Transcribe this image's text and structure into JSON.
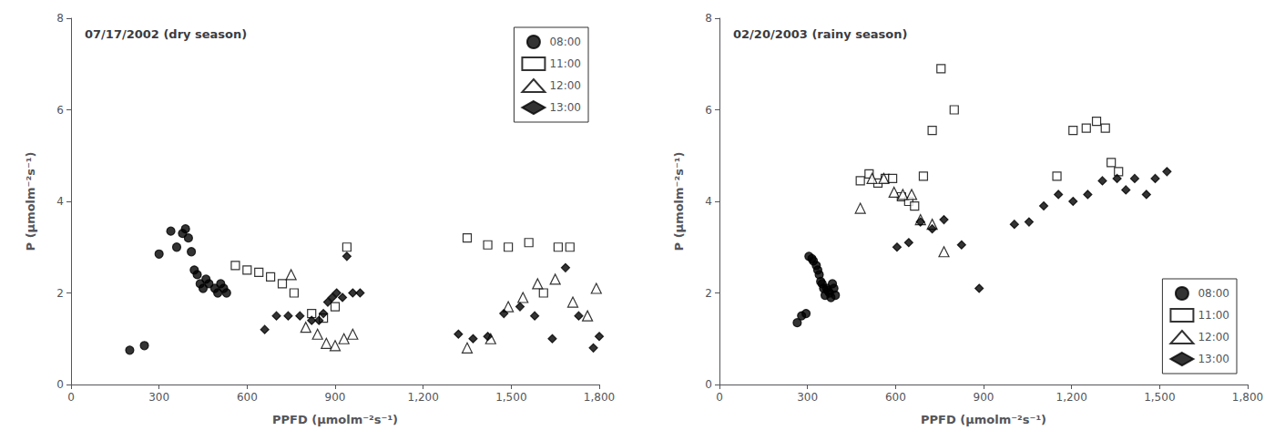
{
  "chart_data": [
    {
      "type": "scatter",
      "title": "07/17/2002 (dry season)",
      "xlabel": "PPFD (μmolm⁻²s⁻¹)",
      "ylabel": "P (μmolm⁻²s⁻¹)",
      "xlim": [
        0,
        1800
      ],
      "ylim": [
        0,
        8
      ],
      "xticks": [
        0,
        300,
        600,
        900,
        1200,
        1500,
        1800
      ],
      "yticks": [
        0,
        2,
        4,
        6,
        8
      ],
      "grid": false,
      "legend": "upper right",
      "series": [
        {
          "name": "08:00",
          "color": "black",
          "marker": "circle",
          "x": [
            200,
            250,
            300,
            340,
            360,
            380,
            390,
            400,
            410,
            420,
            430,
            440,
            450,
            460,
            470,
            490,
            500,
            510,
            520,
            530
          ],
          "values": [
            0.75,
            0.85,
            2.85,
            3.35,
            3.0,
            3.3,
            3.4,
            3.2,
            2.9,
            2.5,
            2.4,
            2.2,
            2.1,
            2.3,
            2.2,
            2.1,
            2.0,
            2.2,
            2.1,
            2.0
          ]
        },
        {
          "name": "11:00",
          "color": "black",
          "marker": "square-open",
          "x": [
            560,
            600,
            640,
            680,
            720,
            760,
            820,
            860,
            900,
            940,
            1350,
            1420,
            1490,
            1560,
            1610,
            1660,
            1700
          ],
          "values": [
            2.6,
            2.5,
            2.45,
            2.35,
            2.2,
            2.0,
            1.55,
            1.45,
            1.7,
            3.0,
            3.2,
            3.05,
            3.0,
            3.1,
            2.0,
            3.0,
            3.0
          ]
        },
        {
          "name": "12:00",
          "color": "black",
          "marker": "triangle-open",
          "x": [
            750,
            800,
            840,
            870,
            900,
            930,
            960,
            1350,
            1430,
            1490,
            1540,
            1590,
            1650,
            1710,
            1760,
            1790
          ],
          "values": [
            2.4,
            1.25,
            1.1,
            0.9,
            0.85,
            1.0,
            1.1,
            0.8,
            1.0,
            1.7,
            1.9,
            2.2,
            2.3,
            1.8,
            1.5,
            2.1
          ]
        },
        {
          "name": "13:00",
          "color": "black",
          "marker": "diamond",
          "x": [
            660,
            700,
            740,
            780,
            820,
            845,
            860,
            875,
            890,
            905,
            925,
            940,
            960,
            985,
            1320,
            1370,
            1420,
            1475,
            1530,
            1580,
            1640,
            1685,
            1730,
            1780,
            1800
          ],
          "values": [
            1.2,
            1.5,
            1.5,
            1.5,
            1.4,
            1.4,
            1.55,
            1.8,
            1.9,
            2.0,
            1.9,
            2.8,
            2.0,
            2.0,
            1.1,
            1.0,
            1.05,
            1.55,
            1.7,
            1.5,
            1.0,
            2.55,
            1.5,
            0.8,
            1.05
          ]
        }
      ]
    },
    {
      "type": "scatter",
      "title": "02/20/2003 (rainy season)",
      "xlabel": "PPFD (μmolm⁻²s⁻¹)",
      "ylabel": "P (μmolm⁻²s⁻¹)",
      "xlim": [
        0,
        1800
      ],
      "ylim": [
        0,
        8
      ],
      "xticks": [
        0,
        300,
        600,
        900,
        1200,
        1500,
        1800
      ],
      "yticks": [
        0,
        2,
        4,
        6,
        8
      ],
      "grid": false,
      "legend": "lower right",
      "series": [
        {
          "name": "08:00",
          "color": "black",
          "marker": "circle",
          "x": [
            265,
            280,
            295,
            305,
            315,
            320,
            330,
            335,
            340,
            345,
            350,
            355,
            360,
            365,
            370,
            375,
            380,
            385,
            390,
            395
          ],
          "values": [
            1.35,
            1.5,
            1.55,
            2.8,
            2.75,
            2.7,
            2.6,
            2.5,
            2.4,
            2.25,
            2.2,
            2.1,
            1.95,
            2.1,
            2.05,
            2.0,
            1.9,
            2.2,
            2.1,
            1.95
          ]
        },
        {
          "name": "11:00",
          "color": "black",
          "marker": "square-open",
          "x": [
            480,
            510,
            540,
            565,
            590,
            620,
            645,
            665,
            695,
            725,
            755,
            800,
            1150,
            1205,
            1250,
            1285,
            1315,
            1335,
            1360
          ],
          "values": [
            4.45,
            4.6,
            4.4,
            4.5,
            4.5,
            4.1,
            4.0,
            3.9,
            4.55,
            5.55,
            6.9,
            6.0,
            4.55,
            5.55,
            5.6,
            5.75,
            5.6,
            4.85,
            4.65
          ]
        },
        {
          "name": "12:00",
          "color": "black",
          "marker": "triangle-open",
          "x": [
            480,
            520,
            560,
            595,
            625,
            655,
            685,
            725,
            765
          ],
          "values": [
            3.85,
            4.5,
            4.5,
            4.2,
            4.15,
            4.15,
            3.6,
            3.5,
            2.9
          ]
        },
        {
          "name": "13:00",
          "color": "black",
          "marker": "diamond",
          "x": [
            605,
            645,
            685,
            725,
            765,
            825,
            885,
            1005,
            1055,
            1105,
            1155,
            1205,
            1255,
            1305,
            1355,
            1385,
            1415,
            1455,
            1485,
            1525
          ],
          "values": [
            3.0,
            3.1,
            3.55,
            3.4,
            3.6,
            3.05,
            2.1,
            3.5,
            3.55,
            3.9,
            4.15,
            4.0,
            4.15,
            4.45,
            4.5,
            4.25,
            4.5,
            4.15,
            4.5,
            4.65
          ]
        }
      ]
    }
  ]
}
